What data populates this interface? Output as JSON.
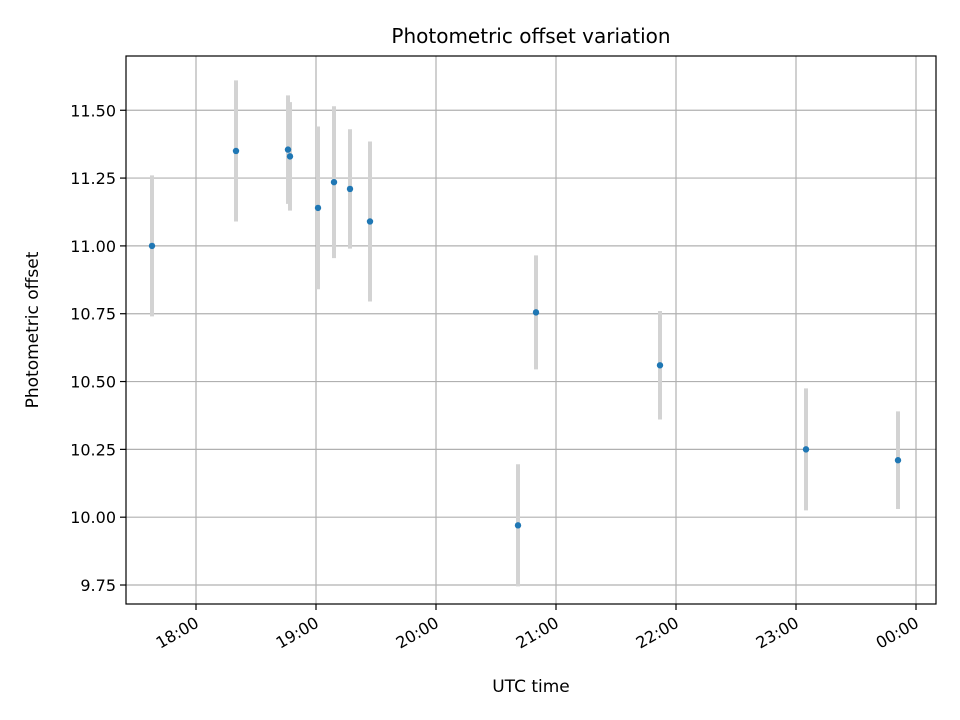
{
  "chart_data": {
    "type": "scatter",
    "title": "Photometric offset variation",
    "xlabel": "UTC time",
    "ylabel": "Photometric offset",
    "grid": true,
    "xlim": [
      "17:25",
      "00:10"
    ],
    "ylim": [
      9.68,
      11.7
    ],
    "x_ticks": [
      "18:00",
      "19:00",
      "20:00",
      "21:00",
      "22:00",
      "23:00",
      "00:00"
    ],
    "y_ticks": [
      "9.75",
      "10.00",
      "10.25",
      "10.50",
      "10.75",
      "11.00",
      "11.25",
      "11.50"
    ],
    "points": [
      {
        "x": "17:38",
        "y": 11.0,
        "err": 0.26
      },
      {
        "x": "18:20",
        "y": 11.35,
        "err": 0.26
      },
      {
        "x": "18:46",
        "y": 11.355,
        "err": 0.2
      },
      {
        "x": "18:47",
        "y": 11.33,
        "err": 0.2
      },
      {
        "x": "19:01",
        "y": 11.14,
        "err": 0.3
      },
      {
        "x": "19:09",
        "y": 11.235,
        "err": 0.28
      },
      {
        "x": "19:17",
        "y": 11.21,
        "err": 0.22
      },
      {
        "x": "19:27",
        "y": 11.09,
        "err": 0.295
      },
      {
        "x": "20:41",
        "y": 9.97,
        "err": 0.225
      },
      {
        "x": "20:50",
        "y": 10.755,
        "err": 0.21
      },
      {
        "x": "21:52",
        "y": 10.56,
        "err": 0.2
      },
      {
        "x": "23:05",
        "y": 10.25,
        "err": 0.225
      },
      {
        "x": "23:51",
        "y": 10.21,
        "err": 0.18
      }
    ],
    "colors": {
      "point": "#1f77b4",
      "errorbar": "#d3d3d3",
      "grid": "#b0b0b0"
    }
  }
}
